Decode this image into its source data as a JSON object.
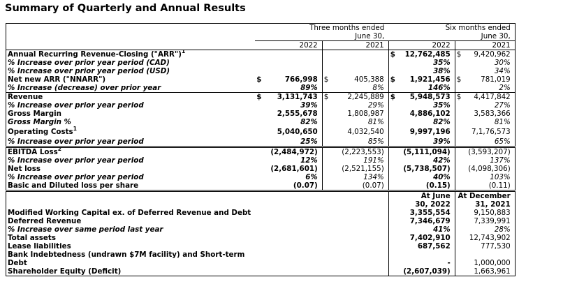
{
  "title": "Summary of Quarterly and Annual Results",
  "header": {
    "three_months": "Three months ended",
    "six_months": "Six months ended",
    "period_end": "June 30,",
    "years": [
      "2022",
      "2021",
      "2022",
      "2021"
    ]
  },
  "rows": [
    {
      "label": "Annual Recurring Revenue-Closing (\"ARR\")",
      "sup": "1",
      "type": "metric",
      "values": [
        "",
        "",
        "12,762,485",
        "9,420,962"
      ],
      "dollar": [
        false,
        false,
        true,
        true
      ],
      "group_start": true
    },
    {
      "label": "% Increase over prior year period (CAD)",
      "type": "pct",
      "values": [
        "",
        "",
        "35%",
        "30%"
      ]
    },
    {
      "label": "% Increase over prior year period (USD)",
      "type": "pct",
      "values": [
        "",
        "",
        "38%",
        "34%"
      ]
    },
    {
      "label": "Net new ARR (\"NNARR\")",
      "type": "metric",
      "values": [
        "766,998",
        "405,388",
        "1,921,456",
        "781,019"
      ],
      "dollar": [
        true,
        true,
        true,
        true
      ]
    },
    {
      "label": "% Increase (decrease) over prior year",
      "type": "pct",
      "values": [
        "89%",
        "8%",
        "146%",
        "2%"
      ]
    },
    {
      "label": "Revenue",
      "type": "metric",
      "values": [
        "3,131,743",
        "2,245,889",
        "5,948,573",
        "4,417,842"
      ],
      "dollar": [
        true,
        true,
        true,
        true
      ],
      "group_start": true
    },
    {
      "label": "% Increase over prior year period",
      "type": "pct",
      "values": [
        "39%",
        "29%",
        "35%",
        "27%"
      ]
    },
    {
      "label": "Gross Margin",
      "type": "metric",
      "values": [
        "2,555,678",
        "1,808,987",
        "4,886,102",
        "3,583,366"
      ]
    },
    {
      "label": "Gross Margin %",
      "type": "pct",
      "values": [
        "82%",
        "81%",
        "82%",
        "81%"
      ]
    },
    {
      "label": "Operating Costs",
      "sup": "1",
      "type": "metric",
      "values": [
        "5,040,650",
        "4,032,540",
        "9,997,196",
        "7,1,76,573"
      ],
      "tall": true
    },
    {
      "label": "% Increase over prior year period",
      "type": "pct",
      "values": [
        "25%",
        "85%",
        "39%",
        "65%"
      ]
    },
    {
      "label": "EBITDA Loss",
      "sup": "2",
      "type": "metric",
      "values": [
        "(2,484,972)",
        "(2,223,553)",
        "(5,111,094)",
        "(3,593,207)"
      ],
      "double_start": true
    },
    {
      "label": "% Increase over prior year period",
      "type": "pct",
      "values": [
        "12%",
        "191%",
        "42%",
        "137%"
      ]
    },
    {
      "label": "Net loss",
      "type": "metric",
      "values": [
        "(2,681,601)",
        "(2,521,155)",
        "(5,738,507)",
        "(4,098,306)"
      ]
    },
    {
      "label": "% Increase over prior year period",
      "type": "pct",
      "values": [
        "6%",
        "134%",
        "40%",
        "103%"
      ]
    },
    {
      "label": "Basic and Diluted loss per share",
      "type": "metric",
      "values": [
        "(0.07)",
        "(0.07)",
        "(0.15)",
        "(0.11)"
      ]
    },
    {
      "label": "",
      "type": "balance-head",
      "values": [
        "",
        "",
        "At June",
        "At December"
      ],
      "double_start": true
    },
    {
      "label": "",
      "type": "balance-head",
      "values": [
        "",
        "",
        "30, 2022",
        "31, 2021"
      ]
    },
    {
      "label": "Modified Working Capital ex. of Deferred Revenue and Debt",
      "type": "balance",
      "values": [
        "",
        "",
        "3,355,554",
        "9,150,883"
      ]
    },
    {
      "label": "Deferred Revenue",
      "type": "balance",
      "values": [
        "",
        "",
        "7,346,679",
        "7,339,991"
      ]
    },
    {
      "label": "% Increase over same period last year",
      "type": "balance-pct",
      "values": [
        "",
        "",
        "41%",
        "28%"
      ]
    },
    {
      "label": "Total assets",
      "type": "balance",
      "values": [
        "",
        "",
        "7,402,910",
        "12,743,902"
      ]
    },
    {
      "label": "Lease liabilities",
      "type": "balance",
      "values": [
        "",
        "",
        "687,562",
        "777,530"
      ]
    },
    {
      "label": "Bank Indebtedness (undrawn $7M facility) and Short-term",
      "type": "balance",
      "values": [
        "",
        "",
        "",
        ""
      ]
    },
    {
      "label": "Debt",
      "type": "balance",
      "values": [
        "",
        "",
        "-",
        "1,000,000"
      ]
    },
    {
      "label": "Shareholder Equity (Deficit)",
      "type": "balance",
      "values": [
        "",
        "",
        "(2,607,039)",
        "1,663,961"
      ]
    }
  ]
}
